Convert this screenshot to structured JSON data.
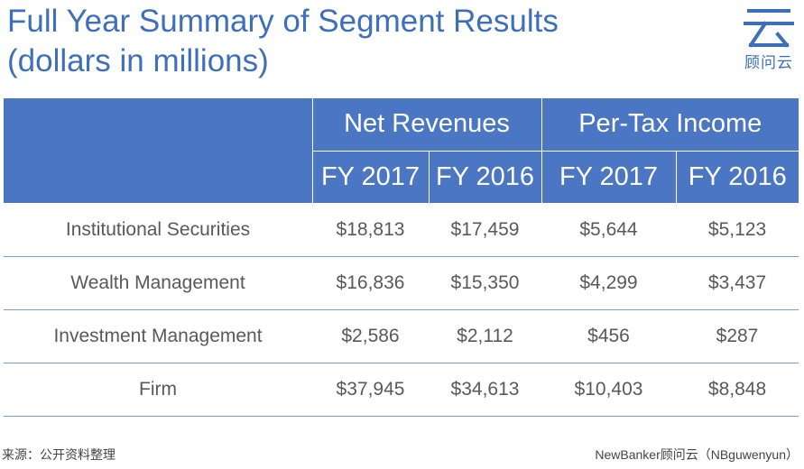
{
  "title": {
    "line1": "Full Year Summary of Segment Results",
    "line2": "(dollars in millions)"
  },
  "logo": {
    "icon": "cloud-glyph-icon",
    "text": "顾问云",
    "color": "#3e6fba"
  },
  "colors": {
    "header_bg": "#4a76c4",
    "accent": "#3e6fba",
    "row_line": "#7a9bd2"
  },
  "table": {
    "group_headers": [
      "Net Revenues",
      "Per-Tax Income"
    ],
    "year_headers": [
      "FY 2017",
      "FY 2016",
      "FY 2017",
      "FY 2016"
    ],
    "rows": [
      {
        "segment": "Institutional Securities",
        "values": [
          "$18,813",
          "$17,459",
          "$5,644",
          "$5,123"
        ]
      },
      {
        "segment": "Wealth Management",
        "values": [
          "$16,836",
          "$15,350",
          "$4,299",
          "$3,437"
        ]
      },
      {
        "segment": "Investment Management",
        "values": [
          "$2,586",
          "$2,112",
          "$456",
          "$287"
        ]
      },
      {
        "segment": "Firm",
        "values": [
          "$37,945",
          "$34,613",
          "$10,403",
          "$8,848"
        ]
      }
    ]
  },
  "footer": {
    "source": "来源：公开资料整理",
    "credit": "NewBanker顾问云（NBguwenyun）"
  }
}
